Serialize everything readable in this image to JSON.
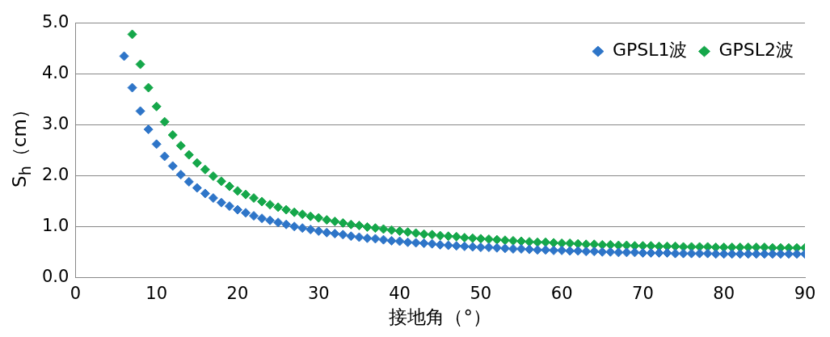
{
  "chart_data": {
    "type": "scatter",
    "xlabel": "接地角（°）",
    "ylabel": "S$_{h}$（cm）",
    "xlim": [
      0,
      90
    ],
    "xticks": [
      0,
      10,
      20,
      30,
      40,
      50,
      60,
      70,
      80,
      90
    ],
    "ylim": [
      0,
      5
    ],
    "yticks": [
      {
        "value": 0,
        "label": "0.0"
      },
      {
        "value": 1,
        "label": "1.0"
      },
      {
        "value": 2,
        "label": "2.0"
      },
      {
        "value": 3,
        "label": "3.0"
      },
      {
        "value": 4,
        "label": "4.0"
      },
      {
        "value": 5,
        "label": "5.0"
      }
    ],
    "grid": "y",
    "legend": "top right",
    "marker": "diamond",
    "series": [
      {
        "name": "GPSL1波",
        "color": "#2e75c8",
        "x": [
          6,
          7,
          8,
          9,
          10,
          11,
          12,
          13,
          14,
          15,
          16,
          17,
          18,
          19,
          20,
          21,
          22,
          23,
          24,
          25,
          26,
          27,
          28,
          29,
          30,
          31,
          32,
          33,
          34,
          35,
          36,
          37,
          38,
          39,
          40,
          41,
          42,
          43,
          44,
          45,
          46,
          47,
          48,
          49,
          50,
          51,
          52,
          53,
          54,
          55,
          56,
          57,
          58,
          59,
          60,
          61,
          62,
          63,
          64,
          65,
          66,
          67,
          68,
          69,
          70,
          71,
          72,
          73,
          74,
          75,
          76,
          77,
          78,
          79,
          80,
          81,
          82,
          83,
          84,
          85,
          86,
          87,
          88,
          89,
          90
        ],
        "values": [
          4.35,
          3.73,
          3.27,
          2.91,
          2.62,
          2.38,
          2.19,
          2.02,
          1.88,
          1.76,
          1.65,
          1.56,
          1.47,
          1.4,
          1.33,
          1.27,
          1.21,
          1.16,
          1.12,
          1.08,
          1.04,
          1.0,
          0.97,
          0.94,
          0.91,
          0.88,
          0.86,
          0.84,
          0.81,
          0.79,
          0.77,
          0.76,
          0.74,
          0.72,
          0.71,
          0.69,
          0.68,
          0.67,
          0.66,
          0.64,
          0.63,
          0.62,
          0.61,
          0.6,
          0.59,
          0.59,
          0.58,
          0.57,
          0.56,
          0.56,
          0.55,
          0.54,
          0.54,
          0.53,
          0.53,
          0.52,
          0.52,
          0.51,
          0.51,
          0.5,
          0.5,
          0.49,
          0.49,
          0.49,
          0.48,
          0.48,
          0.48,
          0.48,
          0.47,
          0.47,
          0.47,
          0.47,
          0.47,
          0.46,
          0.46,
          0.46,
          0.46,
          0.46,
          0.46,
          0.46,
          0.46,
          0.46,
          0.46,
          0.46,
          0.46
        ]
      },
      {
        "name": "GPSL2波",
        "color": "#15a74a",
        "x": [
          7,
          8,
          9,
          10,
          11,
          12,
          13,
          14,
          15,
          16,
          17,
          18,
          19,
          20,
          21,
          22,
          23,
          24,
          25,
          26,
          27,
          28,
          29,
          30,
          31,
          32,
          33,
          34,
          35,
          36,
          37,
          38,
          39,
          40,
          41,
          42,
          43,
          44,
          45,
          46,
          47,
          48,
          49,
          50,
          51,
          52,
          53,
          54,
          55,
          56,
          57,
          58,
          59,
          60,
          61,
          62,
          63,
          64,
          65,
          66,
          67,
          68,
          69,
          70,
          71,
          72,
          73,
          74,
          75,
          76,
          77,
          78,
          79,
          80,
          81,
          82,
          83,
          84,
          85,
          86,
          87,
          88,
          89,
          90
        ],
        "values": [
          4.78,
          4.19,
          3.73,
          3.36,
          3.06,
          2.8,
          2.59,
          2.41,
          2.25,
          2.12,
          1.99,
          1.89,
          1.79,
          1.7,
          1.63,
          1.56,
          1.49,
          1.43,
          1.38,
          1.33,
          1.28,
          1.24,
          1.2,
          1.17,
          1.13,
          1.1,
          1.07,
          1.04,
          1.02,
          0.99,
          0.97,
          0.95,
          0.93,
          0.91,
          0.89,
          0.87,
          0.85,
          0.84,
          0.82,
          0.81,
          0.8,
          0.78,
          0.77,
          0.76,
          0.75,
          0.74,
          0.73,
          0.72,
          0.71,
          0.7,
          0.69,
          0.69,
          0.68,
          0.67,
          0.67,
          0.66,
          0.65,
          0.65,
          0.64,
          0.64,
          0.63,
          0.63,
          0.62,
          0.62,
          0.62,
          0.61,
          0.61,
          0.61,
          0.6,
          0.6,
          0.6,
          0.6,
          0.59,
          0.59,
          0.59,
          0.59,
          0.59,
          0.59,
          0.59,
          0.58,
          0.58,
          0.58,
          0.58,
          0.58
        ]
      }
    ]
  }
}
